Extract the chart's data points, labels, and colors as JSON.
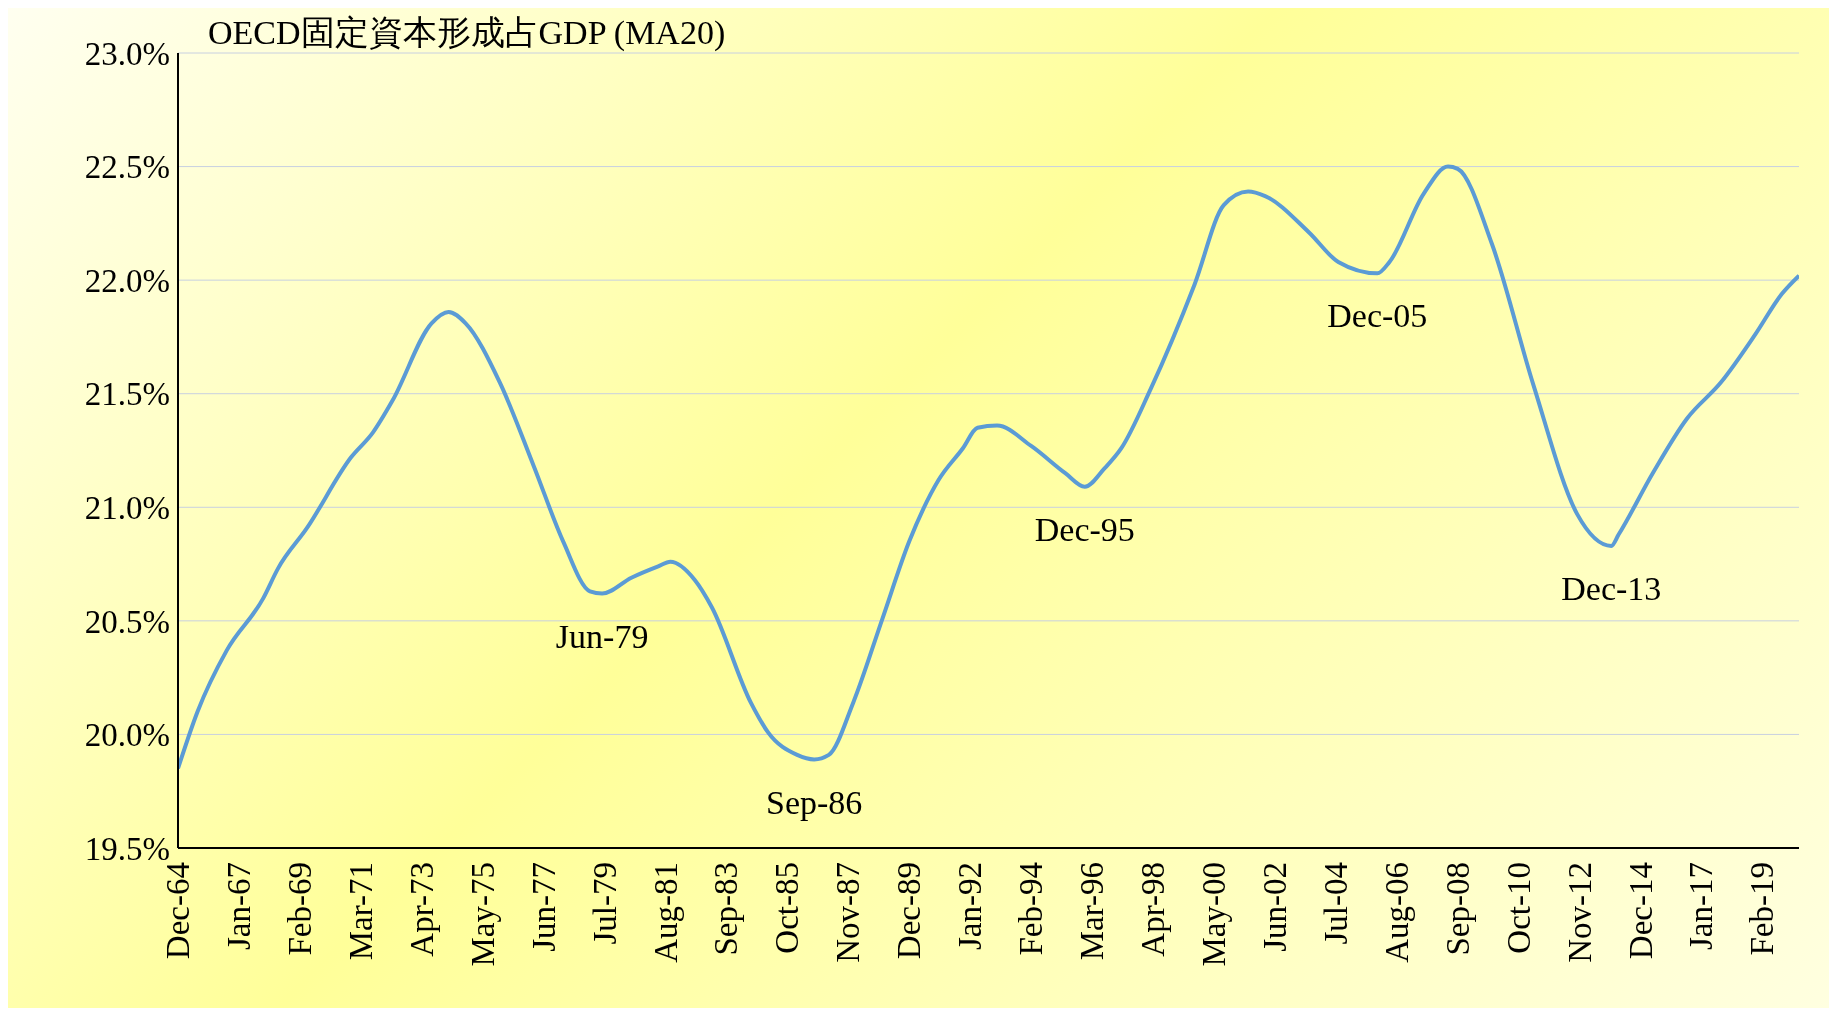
{
  "chart_data": {
    "type": "line",
    "title": "OECD固定資本形成占GDP (MA20)",
    "x": [
      "1964-12",
      "1965-08",
      "1966-08",
      "1967-11",
      "1968-05",
      "1969-05",
      "1970-11",
      "1971-08",
      "1972-04",
      "1973-08",
      "1974-03",
      "1974-10",
      "1975-12",
      "1977-02",
      "1978-02",
      "1979-01",
      "1979-06",
      "1980-06",
      "1981-05",
      "1981-10",
      "1982-08",
      "1983-03",
      "1984-07",
      "1985-02",
      "1986-02",
      "1986-09",
      "1987-03",
      "1988-01",
      "1989-01",
      "1989-12",
      "1990-12",
      "1991-10",
      "1992-04",
      "1992-12",
      "1994-02",
      "1995-04",
      "1995-12",
      "1996-08",
      "1997-03",
      "1998-03",
      "1999-09",
      "2000-09",
      "2001-07",
      "2002-02",
      "2003-08",
      "2004-08",
      "2005-12",
      "2006-05",
      "2007-07",
      "2008-05",
      "2008-09",
      "2009-11",
      "2011-04",
      "2012-10",
      "2013-12",
      "2014-03",
      "2015-05",
      "2016-07",
      "2017-09",
      "2018-11",
      "2019-10",
      "2020-05"
    ],
    "series": [
      {
        "color": "#5b9bd5",
        "values": [
          19.85,
          20.1,
          20.37,
          20.6,
          20.73,
          20.91,
          21.22,
          21.33,
          21.47,
          21.81,
          21.86,
          21.81,
          21.55,
          21.18,
          20.85,
          20.63,
          20.62,
          20.69,
          20.74,
          20.76,
          20.68,
          20.56,
          20.14,
          20.01,
          19.91,
          19.89,
          19.91,
          20.14,
          20.51,
          20.85,
          21.12,
          21.26,
          21.35,
          21.36,
          21.27,
          21.15,
          21.09,
          21.17,
          21.26,
          21.52,
          21.98,
          22.33,
          22.39,
          22.37,
          22.21,
          22.08,
          22.03,
          22.08,
          22.38,
          22.5,
          22.49,
          22.16,
          21.54,
          20.97,
          20.83,
          20.88,
          21.15,
          21.39,
          21.55,
          21.76,
          21.94,
          22.02
        ]
      }
    ],
    "xlim": [
      "1964-12",
      "2020-05"
    ],
    "xticks": [
      {
        "value": "1964-12",
        "label": "Dec-64"
      },
      {
        "value": "1967-01",
        "label": "Jan-67"
      },
      {
        "value": "1969-02",
        "label": "Feb-69"
      },
      {
        "value": "1971-03",
        "label": "Mar-71"
      },
      {
        "value": "1973-04",
        "label": "Apr-73"
      },
      {
        "value": "1975-05",
        "label": "May-75"
      },
      {
        "value": "1977-06",
        "label": "Jun-77"
      },
      {
        "value": "1979-07",
        "label": "Jul-79"
      },
      {
        "value": "1981-08",
        "label": "Aug-81"
      },
      {
        "value": "1983-09",
        "label": "Sep-83"
      },
      {
        "value": "1985-10",
        "label": "Oct-85"
      },
      {
        "value": "1987-11",
        "label": "Nov-87"
      },
      {
        "value": "1989-12",
        "label": "Dec-89"
      },
      {
        "value": "1992-01",
        "label": "Jan-92"
      },
      {
        "value": "1994-02",
        "label": "Feb-94"
      },
      {
        "value": "1996-03",
        "label": "Mar-96"
      },
      {
        "value": "1998-04",
        "label": "Apr-98"
      },
      {
        "value": "2000-05",
        "label": "May-00"
      },
      {
        "value": "2002-06",
        "label": "Jun-02"
      },
      {
        "value": "2004-07",
        "label": "Jul-04"
      },
      {
        "value": "2006-08",
        "label": "Aug-06"
      },
      {
        "value": "2008-09",
        "label": "Sep-08"
      },
      {
        "value": "2010-10",
        "label": "Oct-10"
      },
      {
        "value": "2012-11",
        "label": "Nov-12"
      },
      {
        "value": "2014-12",
        "label": "Dec-14"
      },
      {
        "value": "2017-01",
        "label": "Jan-17"
      },
      {
        "value": "2019-02",
        "label": "Feb-19"
      }
    ],
    "ylim": [
      19.5,
      23.0
    ],
    "yticks": [
      {
        "value": 19.5,
        "label": "19.5%"
      },
      {
        "value": 20.0,
        "label": "20.0%"
      },
      {
        "value": 20.5,
        "label": "20.5%"
      },
      {
        "value": 21.0,
        "label": "21.0%"
      },
      {
        "value": 21.5,
        "label": "21.5%"
      },
      {
        "value": 22.0,
        "label": "22.0%"
      },
      {
        "value": 22.5,
        "label": "22.5%"
      },
      {
        "value": 23.0,
        "label": "23.0%"
      }
    ],
    "grid": "y",
    "annotations": [
      {
        "text": "Jun-79",
        "x": "1979-06",
        "y": 20.62
      },
      {
        "text": "Sep-86",
        "x": "1986-09",
        "y": 19.89
      },
      {
        "text": "Dec-95",
        "x": "1995-12",
        "y": 21.09
      },
      {
        "text": "Dec-05",
        "x": "2005-12",
        "y": 22.03
      },
      {
        "text": "Dec-13",
        "x": "2013-12",
        "y": 20.83
      }
    ]
  }
}
